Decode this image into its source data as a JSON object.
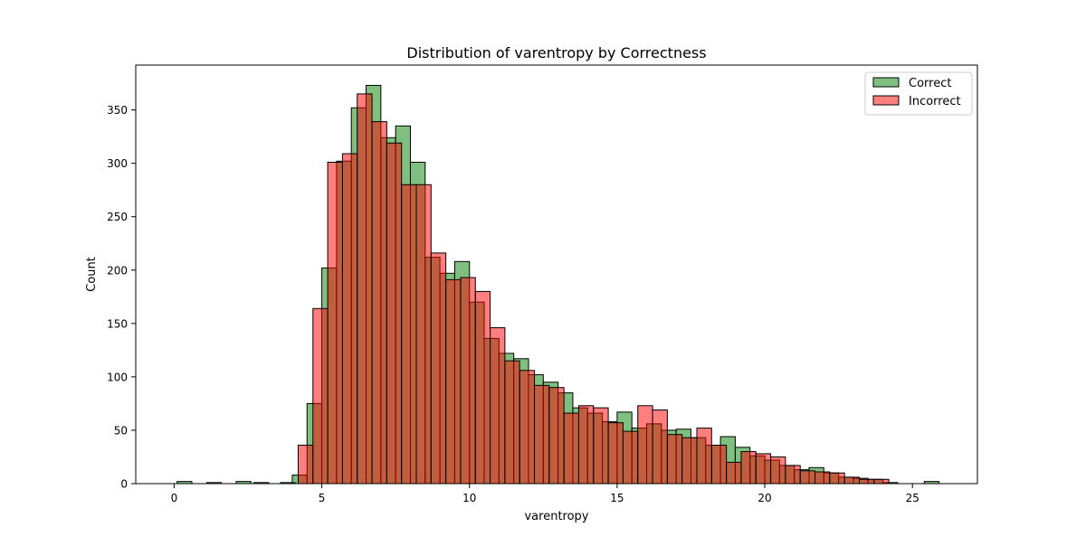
{
  "chart_data": {
    "type": "histogram",
    "title": "Distribution of varentropy by Correctness",
    "xlabel": "varentropy",
    "ylabel": "Count",
    "xlim": [
      -1.3,
      27.2
    ],
    "ylim": [
      0,
      392
    ],
    "xticks": [
      0,
      5,
      10,
      15,
      20,
      25
    ],
    "yticks": [
      0,
      50,
      100,
      150,
      200,
      250,
      300,
      350
    ],
    "bin_width": 0.5,
    "legend_position": "upper right",
    "series": [
      {
        "name": "Correct",
        "color": "#008000",
        "fill_opacity": 0.5,
        "bins": [
          {
            "x": 0.1,
            "value": 2
          },
          {
            "x": 1.1,
            "value": 1
          },
          {
            "x": 2.1,
            "value": 2
          },
          {
            "x": 2.7,
            "value": 1
          },
          {
            "x": 3.6,
            "value": 1
          },
          {
            "x": 4.0,
            "value": 8
          },
          {
            "x": 4.5,
            "value": 75
          },
          {
            "x": 5.0,
            "value": 202
          },
          {
            "x": 5.5,
            "value": 302
          },
          {
            "x": 6.0,
            "value": 352
          },
          {
            "x": 6.5,
            "value": 373
          },
          {
            "x": 7.0,
            "value": 324
          },
          {
            "x": 7.5,
            "value": 335
          },
          {
            "x": 8.0,
            "value": 301
          },
          {
            "x": 8.5,
            "value": 212
          },
          {
            "x": 9.0,
            "value": 197
          },
          {
            "x": 9.5,
            "value": 208
          },
          {
            "x": 10.0,
            "value": 170
          },
          {
            "x": 10.5,
            "value": 136
          },
          {
            "x": 11.0,
            "value": 122
          },
          {
            "x": 11.5,
            "value": 117
          },
          {
            "x": 12.0,
            "value": 102
          },
          {
            "x": 12.5,
            "value": 95
          },
          {
            "x": 13.0,
            "value": 85
          },
          {
            "x": 13.5,
            "value": 71
          },
          {
            "x": 14.0,
            "value": 66
          },
          {
            "x": 14.5,
            "value": 58
          },
          {
            "x": 15.0,
            "value": 67
          },
          {
            "x": 15.5,
            "value": 52
          },
          {
            "x": 16.0,
            "value": 56
          },
          {
            "x": 16.5,
            "value": 50
          },
          {
            "x": 17.0,
            "value": 51
          },
          {
            "x": 17.5,
            "value": 43
          },
          {
            "x": 18.0,
            "value": 36
          },
          {
            "x": 18.5,
            "value": 44
          },
          {
            "x": 19.0,
            "value": 34
          },
          {
            "x": 19.5,
            "value": 26
          },
          {
            "x": 20.0,
            "value": 22
          },
          {
            "x": 20.5,
            "value": 17
          },
          {
            "x": 21.0,
            "value": 13
          },
          {
            "x": 21.5,
            "value": 15
          },
          {
            "x": 22.0,
            "value": 10
          },
          {
            "x": 22.5,
            "value": 6
          },
          {
            "x": 23.0,
            "value": 5
          },
          {
            "x": 23.5,
            "value": 4
          },
          {
            "x": 24.0,
            "value": 1
          },
          {
            "x": 25.4,
            "value": 2
          }
        ]
      },
      {
        "name": "Incorrect",
        "color": "#ff0000",
        "fill_opacity": 0.5,
        "bins": [
          {
            "x": 4.2,
            "value": 36
          },
          {
            "x": 4.7,
            "value": 164
          },
          {
            "x": 5.2,
            "value": 301
          },
          {
            "x": 5.7,
            "value": 309
          },
          {
            "x": 6.2,
            "value": 365
          },
          {
            "x": 6.7,
            "value": 339
          },
          {
            "x": 7.2,
            "value": 319
          },
          {
            "x": 7.7,
            "value": 280
          },
          {
            "x": 8.2,
            "value": 280
          },
          {
            "x": 8.7,
            "value": 216
          },
          {
            "x": 9.2,
            "value": 191
          },
          {
            "x": 9.7,
            "value": 193
          },
          {
            "x": 10.2,
            "value": 180
          },
          {
            "x": 10.7,
            "value": 146
          },
          {
            "x": 11.2,
            "value": 115
          },
          {
            "x": 11.7,
            "value": 106
          },
          {
            "x": 12.2,
            "value": 92
          },
          {
            "x": 12.7,
            "value": 90
          },
          {
            "x": 13.2,
            "value": 66
          },
          {
            "x": 13.7,
            "value": 73
          },
          {
            "x": 14.2,
            "value": 71
          },
          {
            "x": 14.7,
            "value": 57
          },
          {
            "x": 15.2,
            "value": 49
          },
          {
            "x": 15.7,
            "value": 73
          },
          {
            "x": 16.2,
            "value": 69
          },
          {
            "x": 16.7,
            "value": 46
          },
          {
            "x": 17.2,
            "value": 43
          },
          {
            "x": 17.7,
            "value": 52
          },
          {
            "x": 18.2,
            "value": 36
          },
          {
            "x": 18.7,
            "value": 20
          },
          {
            "x": 19.2,
            "value": 30
          },
          {
            "x": 19.7,
            "value": 28
          },
          {
            "x": 20.2,
            "value": 25
          },
          {
            "x": 20.7,
            "value": 17
          },
          {
            "x": 21.2,
            "value": 12
          },
          {
            "x": 21.7,
            "value": 11
          },
          {
            "x": 22.2,
            "value": 10
          },
          {
            "x": 22.7,
            "value": 6
          },
          {
            "x": 23.2,
            "value": 4
          },
          {
            "x": 23.7,
            "value": 4
          }
        ]
      }
    ]
  }
}
